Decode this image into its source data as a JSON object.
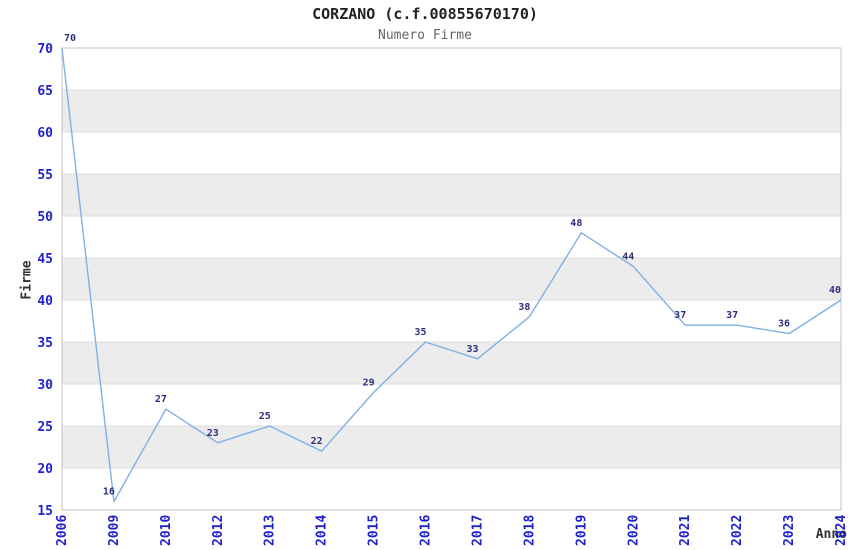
{
  "title": "CORZANO (c.f.00855670170)",
  "subtitle": "Numero Firme",
  "chart_data": {
    "type": "line",
    "title": "CORZANO (c.f.00855670170)",
    "subtitle": "Numero Firme",
    "xlabel": "Anno",
    "ylabel": "Firme",
    "categories": [
      "2006",
      "2009",
      "2010",
      "2012",
      "2013",
      "2014",
      "2015",
      "2016",
      "2017",
      "2018",
      "2019",
      "2020",
      "2021",
      "2022",
      "2023",
      "2024"
    ],
    "values": [
      70,
      16,
      27,
      23,
      25,
      22,
      29,
      35,
      33,
      38,
      48,
      44,
      37,
      37,
      36,
      40
    ],
    "ylim": [
      15,
      70
    ],
    "ytick_step": 5,
    "yticks": [
      15,
      20,
      25,
      30,
      35,
      40,
      45,
      50,
      55,
      60,
      65,
      70
    ],
    "grid": "alternating-horizontal-bands",
    "legend_position": "none",
    "data_labels_shown": true,
    "colors": {
      "line": "#7fb0e6",
      "tick_label": "#2121cc",
      "data_label": "#2e2e7d",
      "band": "#ececec",
      "gridline": "#dedede",
      "plot_border": "#c4c4c4",
      "title": "#222222",
      "subtitle": "#666666",
      "axis_title": "#333333",
      "background": "#ffffff"
    }
  }
}
